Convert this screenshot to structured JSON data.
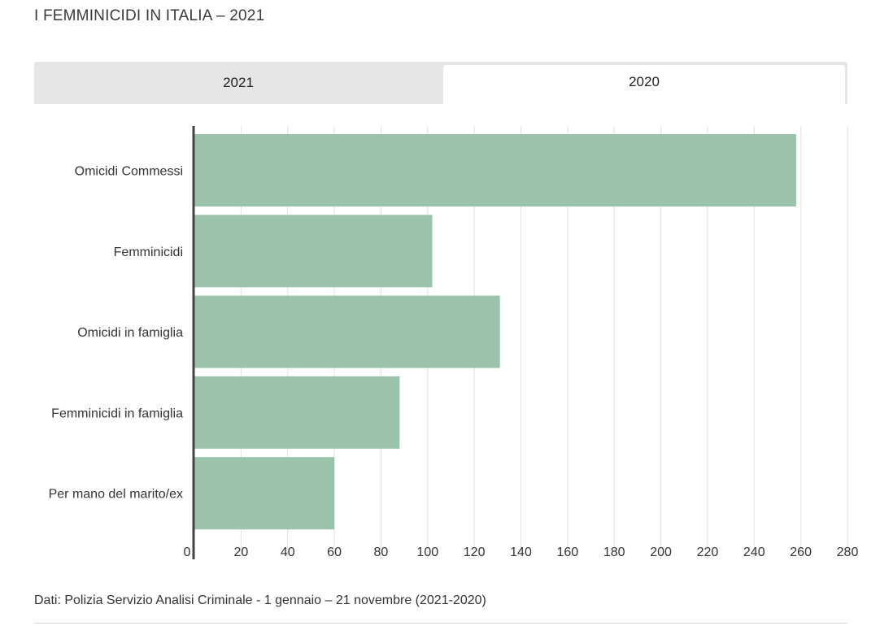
{
  "header": {
    "title": "I FEMMINICIDI IN ITALIA – 2021"
  },
  "tabs": [
    {
      "label": "2021",
      "selected": false
    },
    {
      "label": "2020",
      "selected": true
    }
  ],
  "footer": {
    "source": "Dati:  Polizia Servizio Analisi Criminale -  1 gennaio – 21 novembre (2021-2020)"
  },
  "colors": {
    "bar": "#9bc2ab",
    "grid": "#e2e2e2",
    "axis": "#444444",
    "tab_inactive": "#e6e6e6"
  },
  "chart_data": {
    "type": "bar",
    "orientation": "horizontal",
    "categories": [
      "Omicidi Commessi",
      "Femminicidi",
      "Omicidi in famiglia",
      "Femminicidi in famiglia",
      "Per mano del marito/ex"
    ],
    "values": [
      258,
      102,
      131,
      88,
      60
    ],
    "xlim": [
      0,
      280
    ],
    "xticks": [
      0,
      20,
      40,
      60,
      80,
      100,
      120,
      140,
      160,
      180,
      200,
      220,
      240,
      260,
      280
    ],
    "grid": true
  }
}
